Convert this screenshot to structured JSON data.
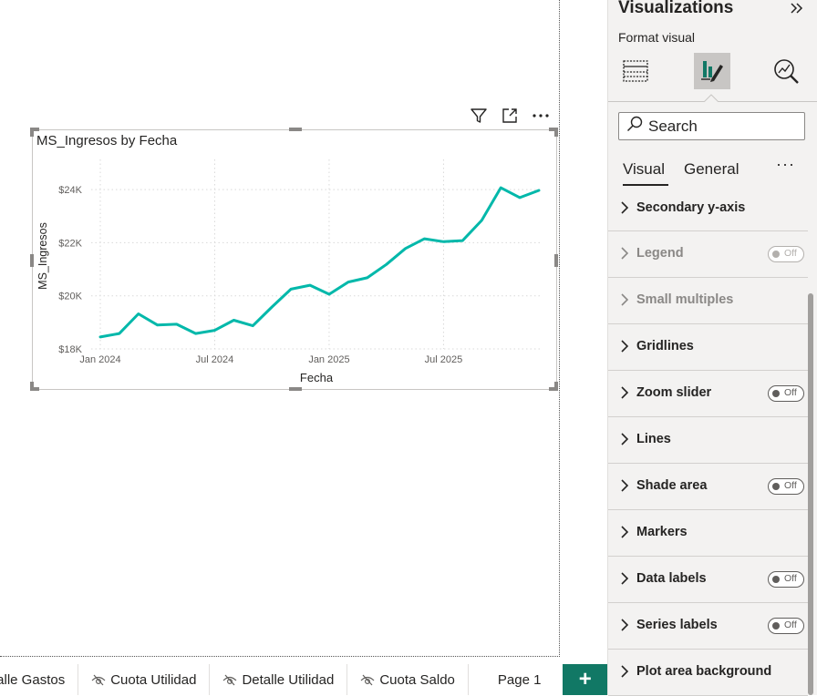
{
  "chart_data": {
    "type": "line",
    "title": "MS_Ingresos by Fecha",
    "xlabel": "Fecha",
    "ylabel": "MS_Ingresos",
    "x": [
      "2024-01",
      "2024-02",
      "2024-03",
      "2024-04",
      "2024-05",
      "2024-06",
      "2024-07",
      "2024-08",
      "2024-09",
      "2024-10",
      "2024-11",
      "2024-12",
      "2025-01",
      "2025-02",
      "2025-03",
      "2025-04",
      "2025-05",
      "2025-06",
      "2025-07",
      "2025-08",
      "2025-09",
      "2025-10",
      "2025-11",
      "2025-12"
    ],
    "series": [
      {
        "values": [
          18450,
          18580,
          19320,
          18900,
          18930,
          18580,
          18700,
          19080,
          18870,
          19580,
          20250,
          20400,
          20060,
          20520,
          20680,
          21180,
          21780,
          22150,
          22040,
          22080,
          22840,
          24070,
          23700,
          23970
        ],
        "color": "#01B8AA"
      }
    ],
    "xticks": [
      "Jan 2024",
      "Jul 2024",
      "Jan 2025",
      "Jul 2025"
    ],
    "yticks": [
      "$18K",
      "$20K",
      "$22K",
      "$24K"
    ],
    "ytick_values": [
      18000,
      20000,
      22000,
      24000
    ],
    "ylim": [
      18000,
      25000
    ],
    "grid": true
  },
  "tabs": [
    {
      "label": "Detalle Gastos",
      "display": "talle Gastos",
      "hidden": false
    },
    {
      "label": "Cuota Utilidad",
      "hidden": true
    },
    {
      "label": "Detalle Utilidad",
      "hidden": true
    },
    {
      "label": "Cuota Saldo",
      "hidden": true
    },
    {
      "label": "Page 1",
      "hidden": false,
      "active": true
    }
  ],
  "add_page_label": "+",
  "viz_pane": {
    "title": "Visualizations",
    "format_visual_label": "Format visual",
    "search_placeholder": "Search",
    "subtabs": {
      "visual": "Visual",
      "general": "General",
      "more": "···"
    },
    "sections": [
      {
        "label": "Secondary y-axis",
        "toggle": null,
        "disabled": false
      },
      {
        "label": "Legend",
        "toggle": "Off",
        "disabled": true
      },
      {
        "label": "Small multiples",
        "toggle": null,
        "disabled": true
      },
      {
        "label": "Gridlines",
        "toggle": null,
        "disabled": false
      },
      {
        "label": "Zoom slider",
        "toggle": "Off",
        "disabled": false
      },
      {
        "label": "Lines",
        "toggle": null,
        "disabled": false
      },
      {
        "label": "Shade area",
        "toggle": "Off",
        "disabled": false
      },
      {
        "label": "Markers",
        "toggle": null,
        "disabled": false
      },
      {
        "label": "Data labels",
        "toggle": "Off",
        "disabled": false
      },
      {
        "label": "Series labels",
        "toggle": "Off",
        "disabled": false
      },
      {
        "label": "Plot area background",
        "toggle": null,
        "disabled": false
      }
    ]
  },
  "colors": {
    "accent": "#117865",
    "line": "#01B8AA"
  }
}
